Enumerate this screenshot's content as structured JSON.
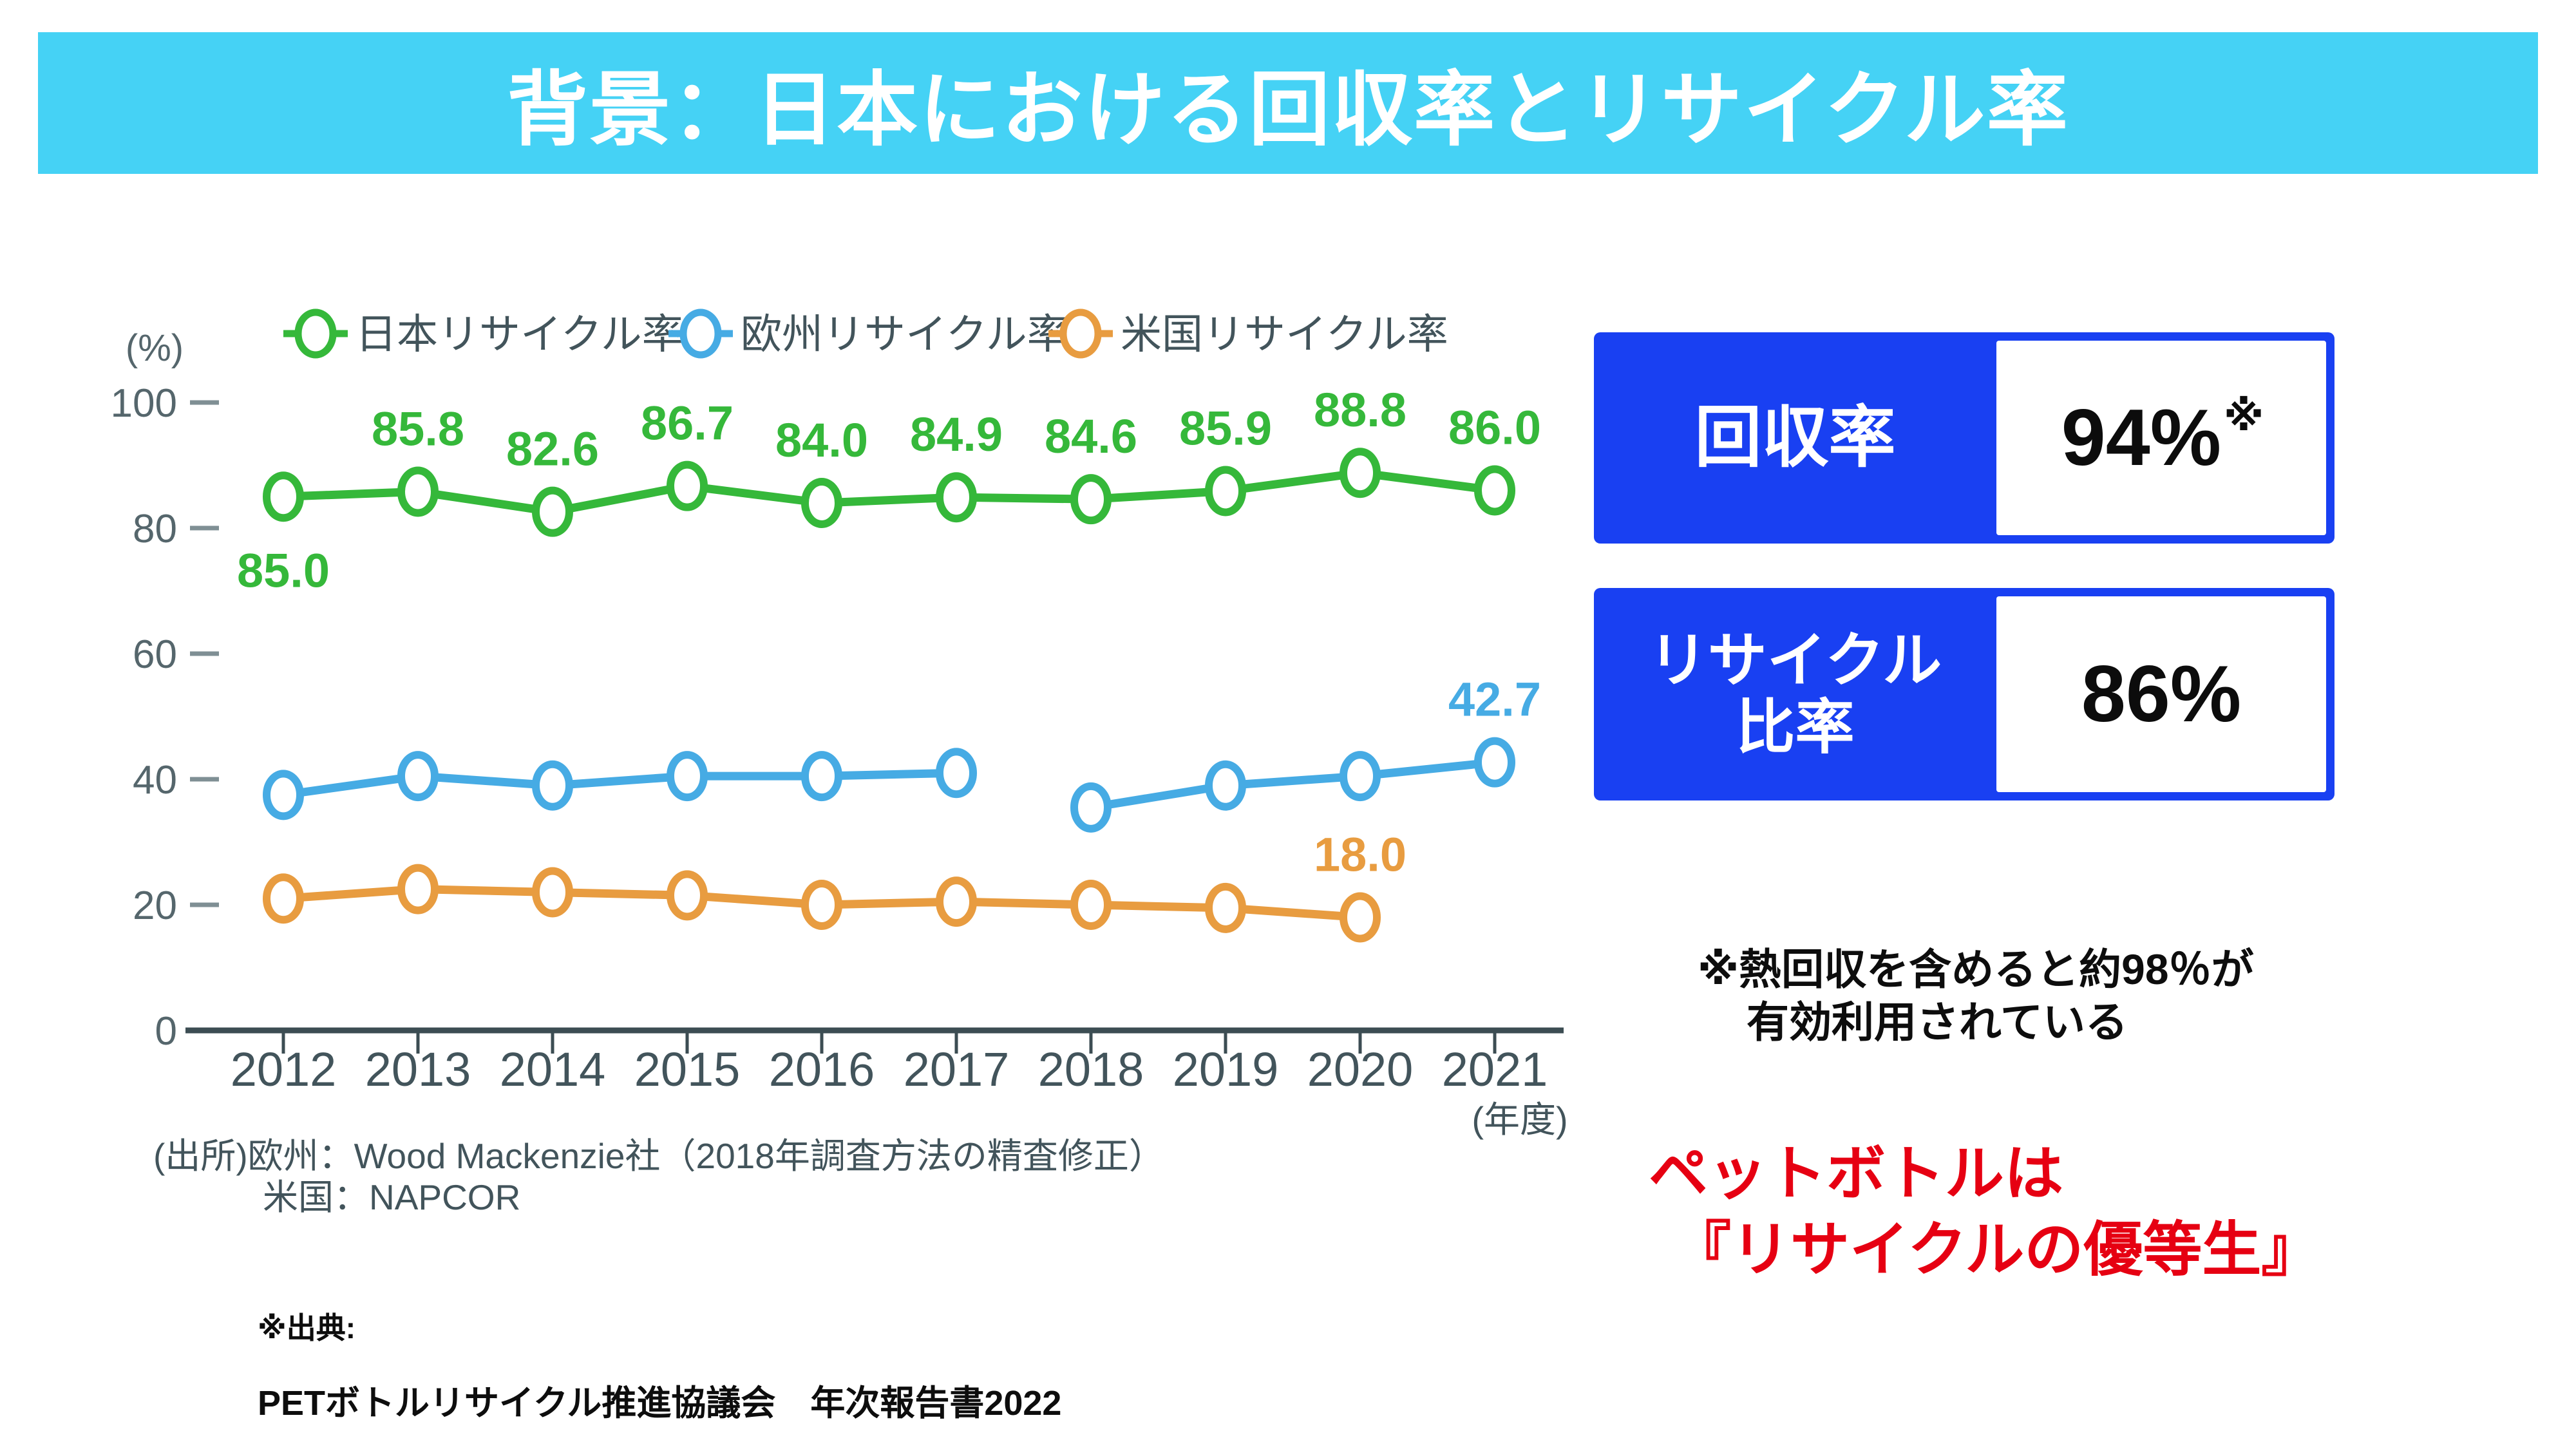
{
  "header": {
    "title": "背景：日本における回収率とリサイクル率"
  },
  "chart_data": {
    "type": "line",
    "unit_label": "(%)",
    "x_axis_note": "(年度)",
    "categories": [
      "2012",
      "2013",
      "2014",
      "2015",
      "2016",
      "2017",
      "2018",
      "2019",
      "2020",
      "2021"
    ],
    "ylim": [
      0,
      100
    ],
    "yticks": [
      0,
      20,
      40,
      60,
      80,
      100
    ],
    "grid": false,
    "legend_position": "top",
    "series": [
      {
        "name": "日本リサイクル率",
        "color": "#35B83A",
        "values": [
          85.0,
          85.8,
          82.6,
          86.7,
          84.0,
          84.9,
          84.6,
          85.9,
          88.8,
          86.0
        ],
        "labels": [
          "85.0",
          "85.8",
          "82.6",
          "86.7",
          "84.0",
          "84.9",
          "84.6",
          "85.9",
          "88.8",
          "86.0"
        ],
        "labels_below": [
          0
        ]
      },
      {
        "name": "欧州リサイクル率",
        "color": "#46ABE4",
        "values": [
          37.5,
          40.5,
          39.0,
          40.5,
          40.5,
          41.0,
          35.5,
          39.0,
          40.5,
          42.7
        ],
        "labels": [
          null,
          null,
          null,
          null,
          null,
          null,
          null,
          null,
          null,
          "42.7"
        ],
        "gap_before": [
          6
        ]
      },
      {
        "name": "米国リサイクル率",
        "color": "#E89C40",
        "values": [
          21.0,
          22.5,
          22.0,
          21.5,
          20.0,
          20.5,
          20.0,
          19.5,
          18.0,
          null
        ],
        "labels": [
          null,
          null,
          null,
          null,
          null,
          null,
          null,
          null,
          "18.0",
          null
        ]
      }
    ]
  },
  "source_note": {
    "line1": "(出所)欧州：Wood Mackenzie社（2018年調査方法の精査修正）",
    "line2": "米国：NAPCOR"
  },
  "citation": {
    "line1": "※出典:",
    "line2": "PETボトルリサイクル推進協議会　年次報告書2022"
  },
  "stat_boxes": {
    "box1": {
      "label": "回収率",
      "value": "94%",
      "suffix": "※"
    },
    "box2": {
      "label_line1": "リサイクル",
      "label_line2": "比率",
      "value": "86%"
    }
  },
  "note": {
    "line1": "※熱回収を含めると約98％が",
    "line2": "有効利用されている"
  },
  "highlight": {
    "line1": "ペットボトルは",
    "line2": "『リサイクルの優等生』"
  },
  "colors": {
    "banner_cyan": "#45D2F5",
    "accent_blue": "#1940F2",
    "highlight_red": "#E60012"
  }
}
